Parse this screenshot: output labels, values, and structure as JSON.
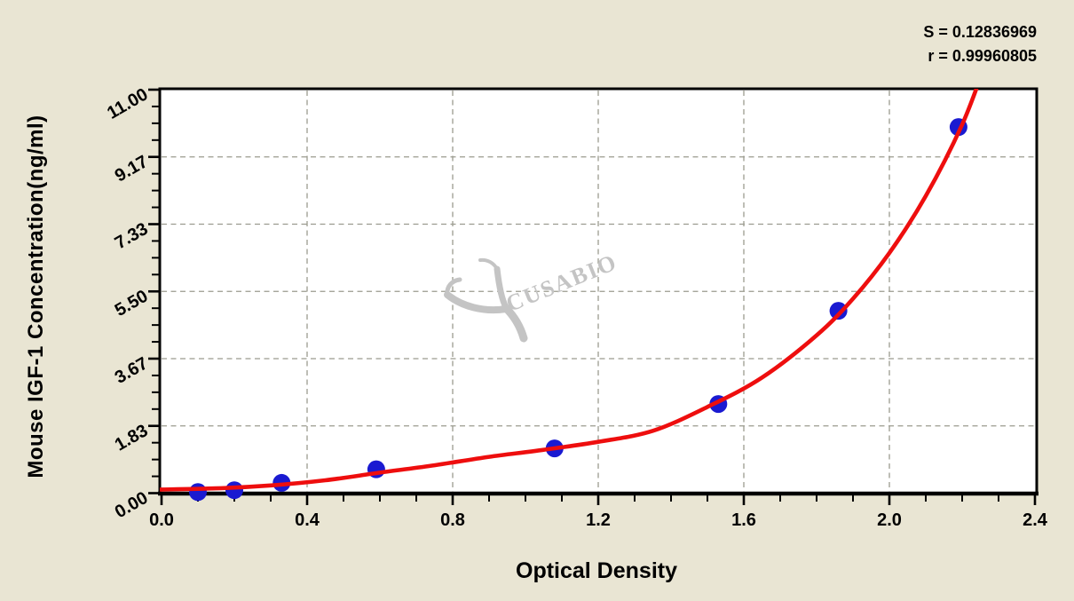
{
  "figure": {
    "background_color": "#e9e5d3",
    "plot_background_color": "#ffffff"
  },
  "chart_data": {
    "type": "scatter",
    "title": "",
    "xlabel": "Optical Density",
    "ylabel": "Mouse IGF-1 Concentration(ng/ml)",
    "xlim": [
      0,
      2.4
    ],
    "ylim": [
      0,
      11
    ],
    "x_tick_values": [
      0,
      0.4,
      0.8,
      1.2,
      1.6,
      2.0,
      2.4
    ],
    "x_tick_labels": [
      "0.0",
      "0.4",
      "0.8",
      "1.2",
      "1.6",
      "2.0",
      "2.4"
    ],
    "x_minor_tick_step": 0.1,
    "y_tick_values": [
      0,
      1.8333,
      3.6667,
      5.5,
      7.3333,
      9.1667,
      11
    ],
    "y_tick_labels": [
      "0.00",
      "1.83",
      "3.67",
      "5.50",
      "7.33",
      "9.17",
      "11.00"
    ],
    "y_minor_ticks_per_major": 4,
    "grid": "dashed gray gridlines at major ticks, plot framed on all four sides",
    "legend": "none",
    "stats_lines": [
      "S = 0.12836969",
      "r = 0.99960805"
    ],
    "watermark": "CUSABIO",
    "series": [
      {
        "name": "standard-points",
        "type": "scatter",
        "marker": "filled-circle",
        "color": "#1a1ad1",
        "points_od_conc": [
          [
            0.1,
            0.03
          ],
          [
            0.2,
            0.08
          ],
          [
            0.33,
            0.28
          ],
          [
            0.59,
            0.65
          ],
          [
            1.08,
            1.22
          ],
          [
            1.53,
            2.43
          ],
          [
            1.86,
            4.97
          ],
          [
            2.19,
            9.98
          ]
        ]
      },
      {
        "name": "fitted-curve",
        "type": "line",
        "color": "#ee0e0e",
        "points_od_conc": [
          [
            0.0,
            0.1
          ],
          [
            0.15,
            0.13
          ],
          [
            0.3,
            0.21
          ],
          [
            0.45,
            0.35
          ],
          [
            0.6,
            0.56
          ],
          [
            0.75,
            0.76
          ],
          [
            0.9,
            0.99
          ],
          [
            1.05,
            1.18
          ],
          [
            1.2,
            1.4
          ],
          [
            1.35,
            1.7
          ],
          [
            1.5,
            2.35
          ],
          [
            1.65,
            3.15
          ],
          [
            1.8,
            4.3
          ],
          [
            1.9,
            5.3
          ],
          [
            2.0,
            6.55
          ],
          [
            2.1,
            8.1
          ],
          [
            2.2,
            10.05
          ],
          [
            2.26,
            11.6
          ]
        ]
      }
    ],
    "colors": {
      "grid": "#9b9b8f",
      "frame": "#000000",
      "text": "#000000",
      "watermark": "#c4c4c4"
    }
  }
}
